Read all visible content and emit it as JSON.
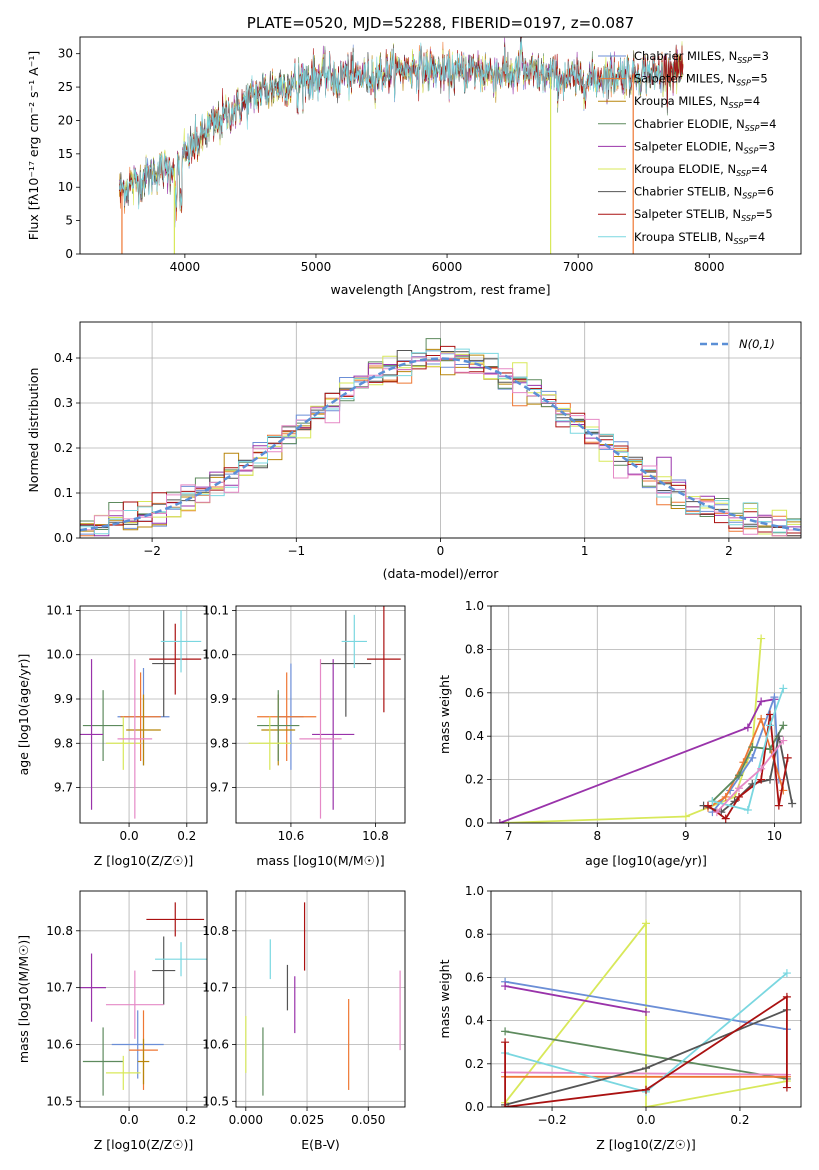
{
  "colors": {
    "chabrier_miles": "#6b8ed6",
    "salpeter_miles": "#ee7733",
    "kroupa_miles": "#b8860b",
    "chabrier_elodie": "#5d8a5d",
    "salpeter_elodie": "#9933aa",
    "kroupa_elodie": "#d8e85a",
    "chabrier_stelib": "#555555",
    "salpeter_stelib": "#aa1111",
    "kroupa_stelib": "#7ad7e0",
    "pink": "#e589c6",
    "gauss": "#5b8fd6",
    "grid": "#b0b0b0"
  },
  "chart_data": [
    {
      "id": "spectrum",
      "type": "line",
      "title": "PLATE=0520, MJD=52288, FIBERID=0197, z=0.087",
      "xlabel": "wavelength [Angstrom, rest frame]",
      "ylabel": "Flux [fλ10⁻¹⁷ erg cm⁻² s⁻¹ A⁻¹]",
      "xlim": [
        3200,
        8700
      ],
      "ylim": [
        0,
        32.5
      ],
      "xticks": [
        4000,
        5000,
        6000,
        7000,
        8000
      ],
      "yticks": [
        0,
        5,
        10,
        15,
        20,
        25,
        30
      ],
      "grid": false,
      "legend_placement": "top-right",
      "continuum_x": [
        3500,
        3650,
        3800,
        3950,
        4050,
        4200,
        4400,
        4600,
        4800,
        5000,
        5200,
        5400,
        5600,
        5800,
        6000,
        6200,
        6400,
        6600,
        6800,
        7000,
        7200,
        7400,
        7600,
        7800,
        8000,
        8200,
        8400,
        8600
      ],
      "continuum_y": [
        9.5,
        11,
        12.5,
        13,
        16,
        19,
        22,
        24.5,
        25.5,
        26.5,
        27,
        26.5,
        27.5,
        28,
        27,
        27.5,
        27,
        27,
        26.5,
        26,
        26.5,
        27,
        27,
        28,
        27.5,
        28,
        28.5,
        28.5
      ],
      "series": [
        {
          "name": "Chabrier MILES, N_SSP=3",
          "label_main": "Chabrier MILES, N",
          "label_sub": "SSP",
          "label_end": "=3",
          "color": "chabrier_miles"
        },
        {
          "name": "Salpeter MILES, N_SSP=5",
          "label_main": "Salpeter MILES, N",
          "label_sub": "SSP",
          "label_end": "=5",
          "color": "salpeter_miles"
        },
        {
          "name": "Kroupa MILES, N_SSP=4",
          "label_main": "Kroupa MILES, N",
          "label_sub": "SSP",
          "label_end": "=4",
          "color": "kroupa_miles"
        },
        {
          "name": "Chabrier ELODIE, N_SSP=4",
          "label_main": "Chabrier ELODIE, N",
          "label_sub": "SSP",
          "label_end": "=4",
          "color": "chabrier_elodie"
        },
        {
          "name": "Salpeter ELODIE, N_SSP=3",
          "label_main": "Salpeter ELODIE, N",
          "label_sub": "SSP",
          "label_end": "=3",
          "color": "salpeter_elodie"
        },
        {
          "name": "Kroupa ELODIE, N_SSP=4",
          "label_main": "Kroupa ELODIE, N",
          "label_sub": "SSP",
          "label_end": "=4",
          "color": "kroupa_elodie"
        },
        {
          "name": "Chabrier STELIB, N_SSP=6",
          "label_main": "Chabrier STELIB, N",
          "label_sub": "SSP",
          "label_end": "=6",
          "color": "chabrier_stelib"
        },
        {
          "name": "Salpeter STELIB, N_SSP=5",
          "label_main": "Salpeter STELIB, N",
          "label_sub": "SSP",
          "label_end": "=5",
          "color": "salpeter_stelib"
        },
        {
          "name": "Kroupa STELIB, N_SSP=4",
          "label_main": "Kroupa STELIB, N",
          "label_sub": "SSP",
          "label_end": "=4",
          "color": "kroupa_stelib"
        }
      ],
      "dropouts": [
        {
          "x": 3520,
          "color": "salpeter_miles"
        },
        {
          "x": 3920,
          "color": "kroupa_elodie"
        },
        {
          "x": 6790,
          "color": "kroupa_elodie"
        },
        {
          "x": 7420,
          "color": "salpeter_miles"
        }
      ]
    },
    {
      "id": "residuals",
      "type": "histogram",
      "xlabel": "(data-model)/error",
      "ylabel": "Normed distribution",
      "xlim": [
        -2.5,
        2.5
      ],
      "ylim": [
        0,
        0.48
      ],
      "xticks": [
        -2,
        -1,
        0,
        1,
        2
      ],
      "yticks": [
        0.0,
        0.1,
        0.2,
        0.3,
        0.4
      ],
      "grid": true,
      "bin_width": 0.1,
      "legend": "N(0,1)",
      "legend_placement": "top-right"
    },
    {
      "id": "age_vs_Z",
      "type": "errorbar",
      "xlabel": "Z [log10(Z/Z☉)]",
      "ylabel": "age [log10(age/yr)]",
      "xlim": [
        -0.17,
        0.27
      ],
      "ylim": [
        9.62,
        10.11
      ],
      "xticks": [
        0.0,
        0.2
      ],
      "yticks": [
        9.7,
        9.8,
        9.9,
        10.0,
        10.1
      ],
      "grid": true,
      "points": [
        {
          "x": 0.05,
          "y": 9.86,
          "xerr": 0.09,
          "yerr": 0.11,
          "color": "chabrier_miles"
        },
        {
          "x": 0.04,
          "y": 9.86,
          "xerr": 0.07,
          "yerr": 0.1,
          "color": "salpeter_miles"
        },
        {
          "x": 0.05,
          "y": 9.83,
          "xerr": 0.06,
          "yerr": 0.08,
          "color": "kroupa_miles"
        },
        {
          "x": -0.09,
          "y": 9.84,
          "xerr": 0.07,
          "yerr": 0.08,
          "color": "chabrier_elodie"
        },
        {
          "x": -0.13,
          "y": 9.82,
          "xerr": 0.04,
          "yerr": 0.17,
          "color": "salpeter_elodie"
        },
        {
          "x": -0.02,
          "y": 9.8,
          "xerr": 0.06,
          "yerr": 0.06,
          "color": "kroupa_elodie"
        },
        {
          "x": 0.12,
          "y": 9.98,
          "xerr": 0.04,
          "yerr": 0.12,
          "color": "chabrier_stelib"
        },
        {
          "x": 0.16,
          "y": 9.99,
          "xerr": 0.09,
          "yerr": 0.08,
          "color": "salpeter_stelib"
        },
        {
          "x": 0.18,
          "y": 10.03,
          "xerr": 0.07,
          "yerr": 0.07,
          "color": "kroupa_stelib"
        },
        {
          "x": 0.02,
          "y": 9.81,
          "xerr": 0.06,
          "yerr": 0.18,
          "color": "pink"
        }
      ]
    },
    {
      "id": "age_vs_mass",
      "type": "errorbar",
      "xlabel": "mass [log10(M/M☉)]",
      "ylabel": "",
      "xlim": [
        10.47,
        10.87
      ],
      "ylim": [
        9.62,
        10.11
      ],
      "xticks": [
        10.6,
        10.8
      ],
      "yticks": [
        9.7,
        9.8,
        9.9,
        10.0,
        10.1
      ],
      "grid": true,
      "points": [
        {
          "x": 10.6,
          "y": 9.86,
          "xerr": 0.03,
          "yerr": 0.12,
          "color": "chabrier_miles"
        },
        {
          "x": 10.59,
          "y": 9.86,
          "xerr": 0.07,
          "yerr": 0.1,
          "color": "salpeter_miles"
        },
        {
          "x": 10.57,
          "y": 9.83,
          "xerr": 0.04,
          "yerr": 0.08,
          "color": "kroupa_miles"
        },
        {
          "x": 10.57,
          "y": 9.84,
          "xerr": 0.05,
          "yerr": 0.08,
          "color": "chabrier_elodie"
        },
        {
          "x": 10.7,
          "y": 9.82,
          "xerr": 0.05,
          "yerr": 0.17,
          "color": "salpeter_elodie"
        },
        {
          "x": 10.55,
          "y": 9.8,
          "xerr": 0.05,
          "yerr": 0.06,
          "color": "kroupa_elodie"
        },
        {
          "x": 10.73,
          "y": 9.98,
          "xerr": 0.06,
          "yerr": 0.12,
          "color": "chabrier_stelib"
        },
        {
          "x": 10.82,
          "y": 9.99,
          "xerr": 0.04,
          "yerr": 0.12,
          "color": "salpeter_stelib"
        },
        {
          "x": 10.75,
          "y": 10.03,
          "xerr": 0.03,
          "yerr": 0.06,
          "color": "kroupa_stelib"
        },
        {
          "x": 10.67,
          "y": 9.81,
          "xerr": 0.05,
          "yerr": 0.18,
          "color": "pink"
        }
      ]
    },
    {
      "id": "weight_vs_age",
      "type": "line",
      "xlabel": "age [log10(age/yr)]",
      "ylabel": "mass weight",
      "xlim": [
        6.8,
        10.3
      ],
      "ylim": [
        0,
        1.0
      ],
      "xticks": [
        7,
        8,
        9,
        10
      ],
      "yticks": [
        0.0,
        0.2,
        0.4,
        0.6,
        0.8,
        1.0
      ],
      "grid": true,
      "series": [
        {
          "color": "kroupa_elodie",
          "x": [
            6.9,
            9.0,
            9.55,
            9.75,
            9.85
          ],
          "y": [
            0.0,
            0.03,
            0.12,
            0.35,
            0.85
          ]
        },
        {
          "color": "salpeter_elodie",
          "x": [
            6.9,
            9.7,
            9.85,
            10.0
          ],
          "y": [
            0.0,
            0.44,
            0.56,
            0.57
          ]
        },
        {
          "color": "chabrier_miles",
          "x": [
            9.3,
            9.5,
            9.75,
            10.0,
            10.05
          ],
          "y": [
            0.05,
            0.15,
            0.3,
            0.58,
            0.2
          ]
        },
        {
          "color": "salpeter_miles",
          "x": [
            9.25,
            9.45,
            9.65,
            9.85,
            10.1
          ],
          "y": [
            0.07,
            0.12,
            0.28,
            0.48,
            0.15
          ]
        },
        {
          "color": "chabrier_elodie",
          "x": [
            9.3,
            9.6,
            9.75,
            9.95,
            10.1
          ],
          "y": [
            0.1,
            0.22,
            0.35,
            0.34,
            0.45
          ]
        },
        {
          "color": "chabrier_stelib",
          "x": [
            9.2,
            9.4,
            9.55,
            9.75,
            9.95,
            10.05,
            10.2
          ],
          "y": [
            0.08,
            0.05,
            0.1,
            0.18,
            0.2,
            0.4,
            0.09
          ]
        },
        {
          "color": "salpeter_stelib",
          "x": [
            9.25,
            9.45,
            9.6,
            9.85,
            9.95,
            10.05,
            10.15
          ],
          "y": [
            0.08,
            0.02,
            0.12,
            0.2,
            0.5,
            0.08,
            0.3
          ]
        },
        {
          "color": "kroupa_stelib",
          "x": [
            9.3,
            9.7,
            9.95,
            10.1
          ],
          "y": [
            0.1,
            0.06,
            0.45,
            0.62
          ]
        },
        {
          "color": "pink",
          "x": [
            9.35,
            9.6,
            9.85,
            10.1
          ],
          "y": [
            0.05,
            0.16,
            0.25,
            0.38
          ]
        }
      ]
    },
    {
      "id": "mass_vs_Z",
      "type": "errorbar",
      "xlabel": "Z [log10(Z/Z☉)]",
      "ylabel": "mass [log10(M/M☉)]",
      "xlim": [
        -0.17,
        0.27
      ],
      "ylim": [
        10.49,
        10.87
      ],
      "xticks": [
        0.0,
        0.2
      ],
      "yticks": [
        10.5,
        10.6,
        10.7,
        10.8
      ],
      "grid": true,
      "points": [
        {
          "x": 0.03,
          "y": 10.6,
          "xerr": 0.09,
          "yerr": 0.06,
          "color": "chabrier_miles"
        },
        {
          "x": 0.05,
          "y": 10.59,
          "xerr": 0.05,
          "yerr": 0.07,
          "color": "salpeter_miles"
        },
        {
          "x": 0.05,
          "y": 10.57,
          "xerr": 0.02,
          "yerr": 0.04,
          "color": "kroupa_miles"
        },
        {
          "x": -0.09,
          "y": 10.57,
          "xerr": 0.07,
          "yerr": 0.06,
          "color": "chabrier_elodie"
        },
        {
          "x": -0.13,
          "y": 10.7,
          "xerr": 0.05,
          "yerr": 0.06,
          "color": "salpeter_elodie"
        },
        {
          "x": -0.02,
          "y": 10.55,
          "xerr": 0.06,
          "yerr": 0.03,
          "color": "kroupa_elodie"
        },
        {
          "x": 0.12,
          "y": 10.73,
          "xerr": 0.04,
          "yerr": 0.06,
          "color": "chabrier_stelib"
        },
        {
          "x": 0.16,
          "y": 10.82,
          "xerr": 0.1,
          "yerr": 0.03,
          "color": "salpeter_stelib"
        },
        {
          "x": 0.18,
          "y": 10.75,
          "xerr": 0.09,
          "yerr": 0.03,
          "color": "kroupa_stelib"
        },
        {
          "x": 0.02,
          "y": 10.67,
          "xerr": 0.1,
          "yerr": 0.06,
          "color": "pink"
        }
      ]
    },
    {
      "id": "mass_vs_ebv",
      "type": "errorbar",
      "xlabel": "E(B-V)",
      "ylabel": "",
      "xlim": [
        -0.004,
        0.065
      ],
      "ylim": [
        10.49,
        10.87
      ],
      "xticks": [
        0.0,
        0.025,
        0.05
      ],
      "yticks": [
        10.5,
        10.6,
        10.7,
        10.8
      ],
      "grid": true,
      "points": [
        {
          "x": 0.0,
          "y": 10.6,
          "xerr": 0.0,
          "yerr": 0.05,
          "color": "kroupa_elodie"
        },
        {
          "x": 0.007,
          "y": 10.57,
          "xerr": 0.0,
          "yerr": 0.06,
          "color": "chabrier_elodie"
        },
        {
          "x": 0.01,
          "y": 10.75,
          "xerr": 0.0,
          "yerr": 0.035,
          "color": "kroupa_stelib"
        },
        {
          "x": 0.017,
          "y": 10.7,
          "xerr": 0.0,
          "yerr": 0.04,
          "color": "chabrier_stelib"
        },
        {
          "x": 0.02,
          "y": 10.67,
          "xerr": 0.0,
          "yerr": 0.05,
          "color": "salpeter_elodie"
        },
        {
          "x": 0.024,
          "y": 10.79,
          "xerr": 0.0,
          "yerr": 0.06,
          "color": "salpeter_stelib"
        },
        {
          "x": 0.042,
          "y": 10.6,
          "xerr": 0.0,
          "yerr": 0.08,
          "color": "salpeter_miles"
        },
        {
          "x": 0.063,
          "y": 10.66,
          "xerr": 0.0,
          "yerr": 0.07,
          "color": "pink"
        }
      ]
    },
    {
      "id": "weight_vs_Z",
      "type": "line",
      "xlabel": "Z [log10(Z/Z☉)]",
      "ylabel": "mass weight",
      "xlim": [
        -0.33,
        0.33
      ],
      "ylim": [
        0,
        1.0
      ],
      "xticks": [
        -0.2,
        0.0,
        0.2
      ],
      "yticks": [
        0.0,
        0.2,
        0.4,
        0.6,
        0.8,
        1.0
      ],
      "grid": true,
      "series": [
        {
          "color": "kroupa_elodie",
          "x": [
            -0.3,
            0.0,
            0.0,
            0.3
          ],
          "y": [
            0.02,
            0.85,
            0.0,
            0.12
          ]
        },
        {
          "color": "chabrier_miles",
          "x": [
            -0.3,
            0.3
          ],
          "y": [
            0.58,
            0.36
          ]
        },
        {
          "color": "salpeter_elodie",
          "x": [
            -0.3,
            0.0
          ],
          "y": [
            0.56,
            0.44
          ]
        },
        {
          "color": "chabrier_elodie",
          "x": [
            -0.3,
            0.3
          ],
          "y": [
            0.35,
            0.13
          ]
        },
        {
          "color": "salpeter_miles",
          "x": [
            -0.3,
            0.3
          ],
          "y": [
            0.14,
            0.14
          ]
        },
        {
          "color": "pink",
          "x": [
            -0.3,
            0.3
          ],
          "y": [
            0.16,
            0.15
          ]
        },
        {
          "color": "kroupa_stelib",
          "x": [
            -0.3,
            0.0,
            0.3
          ],
          "y": [
            0.25,
            0.07,
            0.62
          ]
        },
        {
          "color": "chabrier_stelib",
          "x": [
            -0.3,
            0.0,
            0.3
          ],
          "y": [
            0.01,
            0.18,
            0.45
          ]
        },
        {
          "color": "salpeter_stelib",
          "x": [
            -0.3,
            -0.3,
            0.0,
            0.3,
            0.3
          ],
          "y": [
            0.3,
            0.0,
            0.08,
            0.51,
            0.09
          ]
        }
      ]
    }
  ]
}
